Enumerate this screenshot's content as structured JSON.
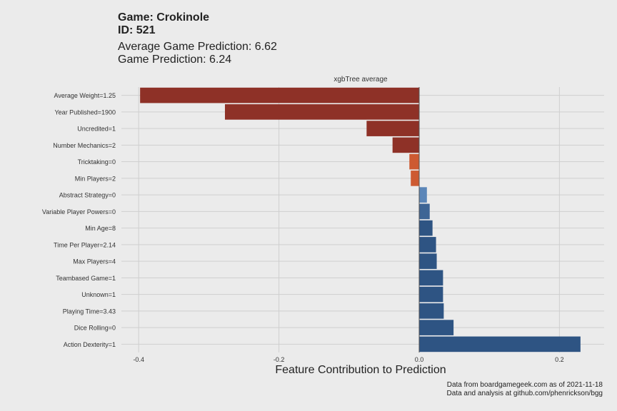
{
  "header": {
    "game": "Game: Crokinole",
    "id": "ID: 521",
    "avg_prediction": "Average Game Prediction: 6.62",
    "prediction": "Game Prediction: 6.24"
  },
  "caption": {
    "line1": "Data from boardgamegeek.com as of 2021-11-18",
    "line2": "Data and analysis at github.com/phenrickson/bgg"
  },
  "chart_data": {
    "type": "bar",
    "orientation": "horizontal",
    "facet_label": "xgbTree average",
    "xlabel": "Feature Contribution to Prediction",
    "ylabel": "",
    "xlim": [
      -0.41,
      0.25
    ],
    "xticks": [
      -0.4,
      -0.2,
      0.0,
      0.2
    ],
    "xtick_labels": [
      "-0.4",
      "-0.2",
      "0.0",
      "0.2"
    ],
    "grid": true,
    "categories": [
      "Average Weight=1.25",
      "Year Published=1900",
      "Uncredited=1",
      "Number Mechanics=2",
      "Tricktaking=0",
      "Min Players=2",
      "Abstract Strategy=0",
      "Variable Player Powers=0",
      "Min Age=8",
      "Time Per Player=2.14",
      "Max Players=4",
      "Teambased Game=1",
      "Unknown=1",
      "Playing Time=3.43",
      "Dice Rolling=0",
      "Action Dexterity=1"
    ],
    "values": [
      -0.398,
      -0.277,
      -0.075,
      -0.038,
      -0.014,
      -0.012,
      0.011,
      0.015,
      0.019,
      0.024,
      0.025,
      0.034,
      0.034,
      0.035,
      0.049,
      0.23
    ],
    "colors": [
      "#8e3127",
      "#8e3127",
      "#8e3127",
      "#8e3127",
      "#cd5a32",
      "#cd5a32",
      "#5b86b8",
      "#3e6595",
      "#2e5483",
      "#2e5483",
      "#2e5483",
      "#2e5483",
      "#2e5483",
      "#2e5483",
      "#2e5483",
      "#2e5483"
    ]
  }
}
